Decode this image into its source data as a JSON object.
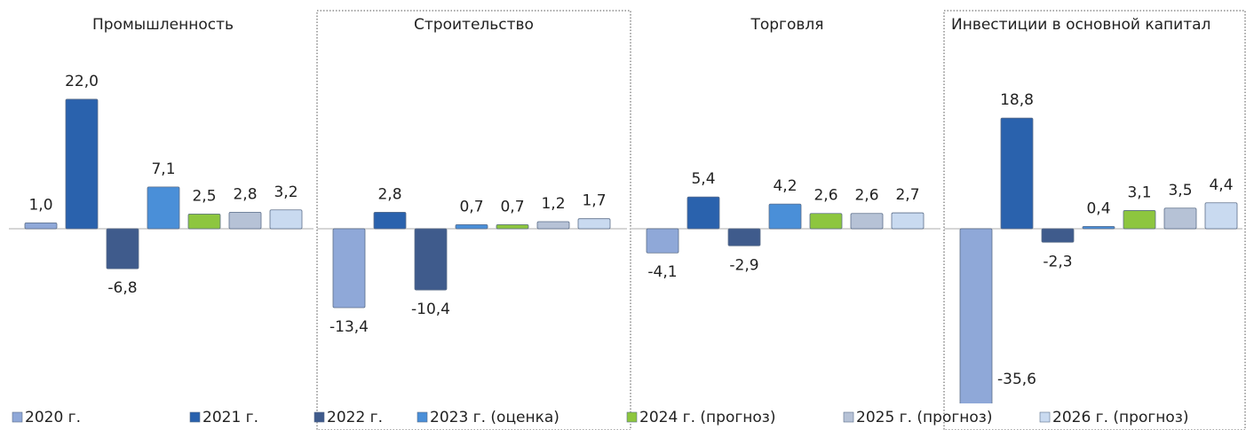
{
  "chart_data": {
    "type": "bar",
    "categories": [
      "Промышленность",
      "Строительство",
      "Торговля",
      "Инвестиции в основной капитал"
    ],
    "series": [
      {
        "name": "2020 г.",
        "color": "#8fa8d8",
        "values": [
          1.0,
          -13.4,
          -4.1,
          -35.6
        ],
        "value_labels": [
          "1,0",
          "-13,4",
          "-4,1",
          "-35,6"
        ]
      },
      {
        "name": "2021 г.",
        "color": "#2a62ad",
        "values": [
          22.0,
          2.8,
          5.4,
          18.8
        ],
        "value_labels": [
          "22,0",
          "2,8",
          "5,4",
          "18,8"
        ]
      },
      {
        "name": "2022 г.",
        "color": "#3f5b8c",
        "values": [
          -6.8,
          -10.4,
          -2.9,
          -2.3
        ],
        "value_labels": [
          "-6,8",
          "-10,4",
          "-2,9",
          "-2,3"
        ]
      },
      {
        "name": "2023 г. (оценка)",
        "color": "#4a8fd8",
        "values": [
          7.1,
          0.7,
          4.2,
          0.4
        ],
        "value_labels": [
          "7,1",
          "0,7",
          "4,2",
          "0,4"
        ]
      },
      {
        "name": "2024 г. (прогноз)",
        "color": "#8dc63f",
        "values": [
          2.5,
          0.7,
          2.6,
          3.1
        ],
        "value_labels": [
          "2,5",
          "0,7",
          "2,6",
          "3,1"
        ]
      },
      {
        "name": "2025 г. (прогноз)",
        "color": "#b6c2d6",
        "values": [
          2.8,
          1.2,
          2.6,
          3.5
        ],
        "value_labels": [
          "2,8",
          "1,2",
          "2,6",
          "3,5"
        ]
      },
      {
        "name": "2026 г. (прогноз)",
        "color": "#c9daf0",
        "values": [
          3.2,
          1.7,
          2.7,
          4.4
        ],
        "value_labels": [
          "3,2",
          "1,7",
          "2,7",
          "4,4"
        ]
      }
    ]
  }
}
